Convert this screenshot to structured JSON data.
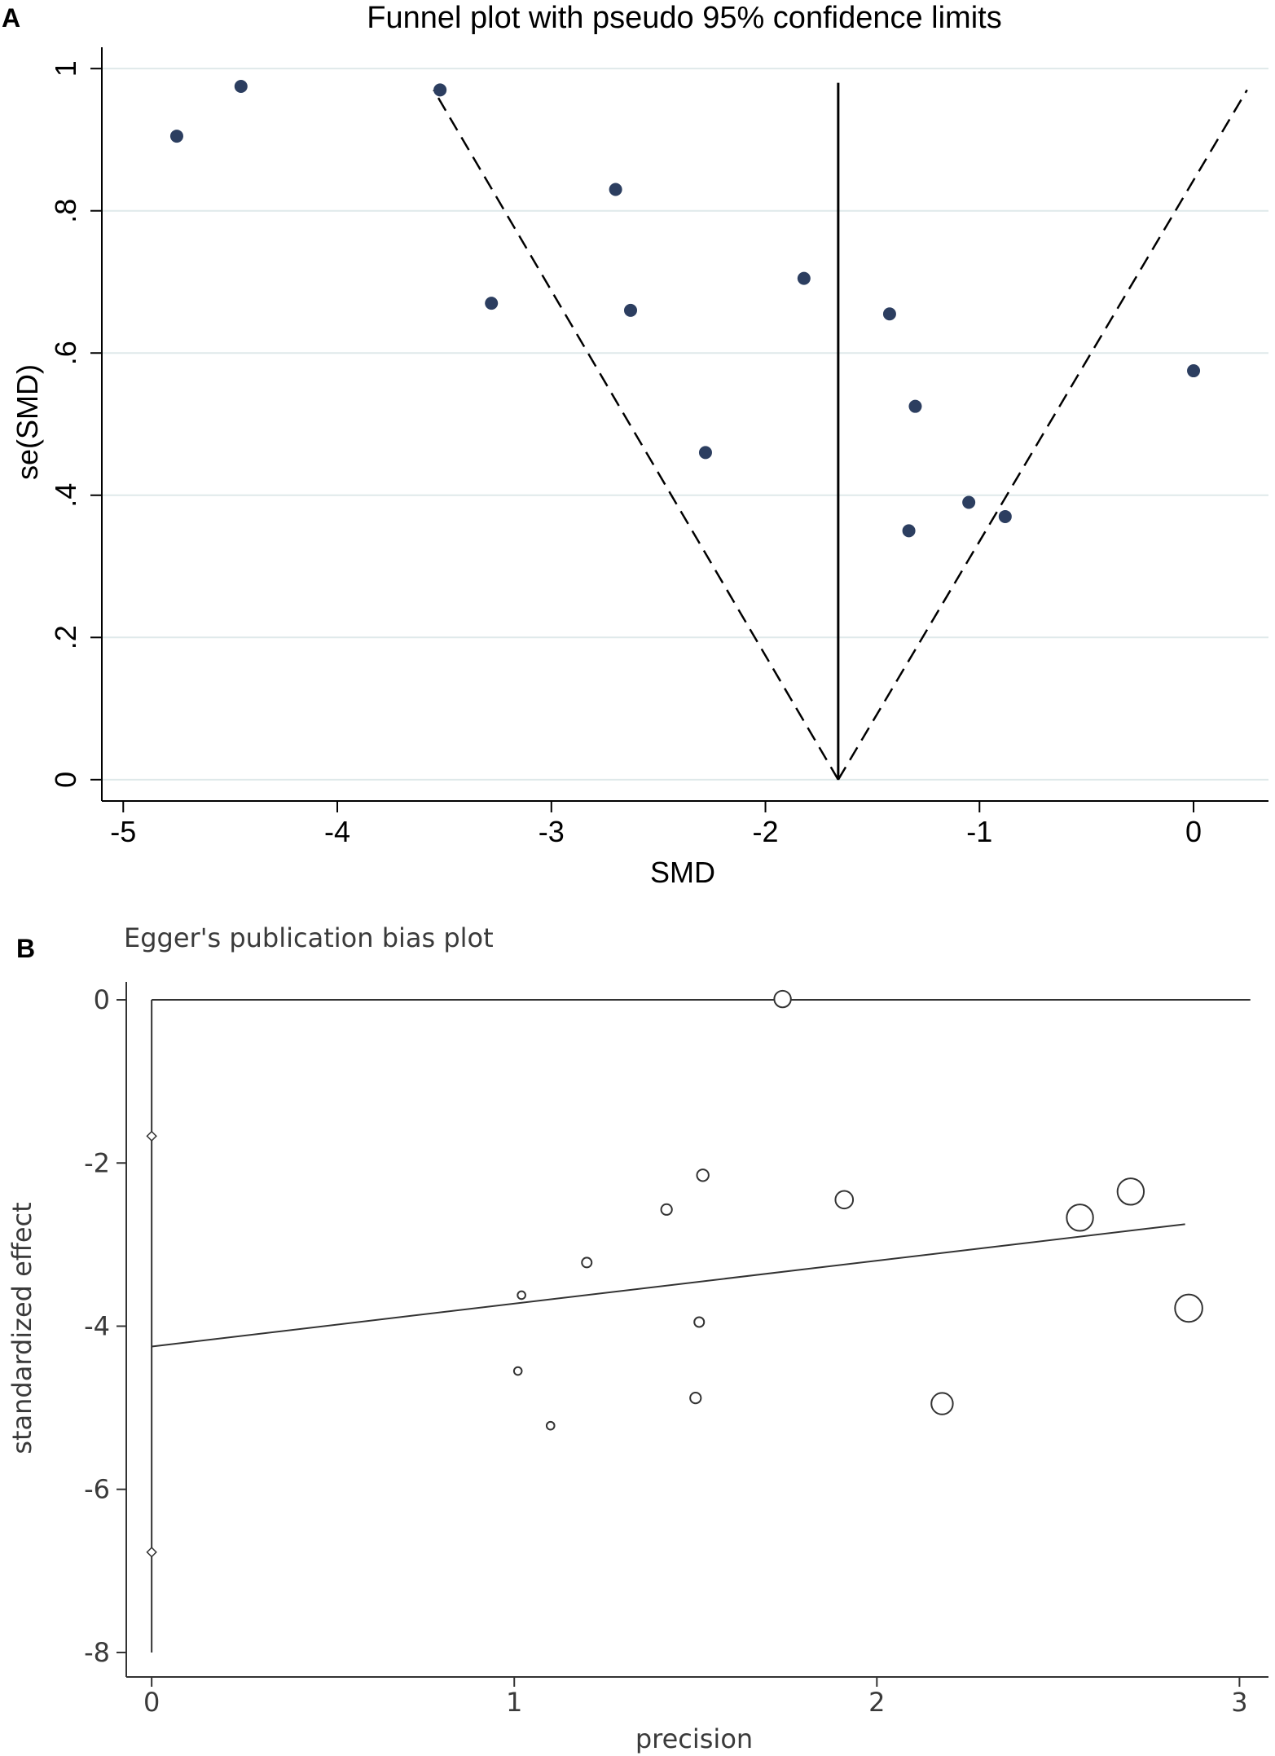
{
  "panels": {
    "a": {
      "label": "A"
    },
    "b": {
      "label": "B"
    }
  },
  "chart_data": [
    {
      "type": "scatter",
      "title": "Funnel plot with pseudo 95% confidence limits",
      "xlabel": "SMD",
      "ylabel": "se(SMD)",
      "xlim": [
        -5.1,
        0.35
      ],
      "ylim": [
        1.03,
        -0.03
      ],
      "y_reversed": true,
      "x_ticks": [
        -5,
        -4,
        -3,
        -2,
        -1,
        0
      ],
      "x_tick_labels": [
        "-5",
        "-4",
        "-3",
        "-2",
        "-1",
        "0"
      ],
      "y_ticks": [
        0,
        0.2,
        0.4,
        0.6,
        0.8,
        1
      ],
      "y_tick_labels": [
        "0",
        ".2",
        ".4",
        ".6",
        ".8",
        "1"
      ],
      "grid": true,
      "grid_color": "#dfe9ea",
      "marker_color": "#2c3e60",
      "pooled_estimate": -1.66,
      "funnel": {
        "apex": [
          -1.66,
          0
        ],
        "lower_left": [
          -3.55,
          0.97
        ],
        "lower_right": [
          0.25,
          0.97
        ]
      },
      "points": [
        {
          "x": -4.75,
          "y": 0.905
        },
        {
          "x": -4.45,
          "y": 0.975
        },
        {
          "x": -3.52,
          "y": 0.97
        },
        {
          "x": -3.28,
          "y": 0.67
        },
        {
          "x": -2.7,
          "y": 0.83
        },
        {
          "x": -2.63,
          "y": 0.66
        },
        {
          "x": -2.28,
          "y": 0.46
        },
        {
          "x": -1.82,
          "y": 0.705
        },
        {
          "x": -1.42,
          "y": 0.655
        },
        {
          "x": -1.33,
          "y": 0.35
        },
        {
          "x": -1.3,
          "y": 0.525
        },
        {
          "x": -1.05,
          "y": 0.39
        },
        {
          "x": -0.88,
          "y": 0.37
        },
        {
          "x": 0.0,
          "y": 0.575
        }
      ]
    },
    {
      "type": "scatter",
      "title": "Egger's publication bias plot",
      "xlabel": "precision",
      "ylabel": "standardized effect",
      "xlim": [
        -0.07,
        3.08
      ],
      "ylim": [
        -8.3,
        0.22
      ],
      "x_ticks": [
        0,
        1,
        2,
        3
      ],
      "x_tick_labels": [
        "0",
        "1",
        "2",
        "3"
      ],
      "y_ticks": [
        0,
        -2,
        -4,
        -6,
        -8
      ],
      "y_tick_labels": [
        "0",
        "-2",
        "-4",
        "-6",
        "-8"
      ],
      "grid": false,
      "reference_line_y": 0,
      "confidence_interval": {
        "x": 0,
        "y_low": -8,
        "y_high": 0,
        "marks": [
          -1.67,
          -6.77
        ]
      },
      "regression_line": {
        "x": [
          0,
          2.85
        ],
        "y": [
          -4.25,
          -2.75
        ]
      },
      "points": [
        {
          "x": 1.74,
          "y": 0.01,
          "w": 1.7
        },
        {
          "x": 1.52,
          "y": -2.15,
          "w": 1.2
        },
        {
          "x": 1.42,
          "y": -2.57,
          "w": 1.1
        },
        {
          "x": 1.91,
          "y": -2.45,
          "w": 1.8
        },
        {
          "x": 1.2,
          "y": -3.22,
          "w": 1.0
        },
        {
          "x": 1.02,
          "y": -3.62,
          "w": 0.8
        },
        {
          "x": 1.51,
          "y": -3.95,
          "w": 1.0
        },
        {
          "x": 1.01,
          "y": -4.55,
          "w": 0.8
        },
        {
          "x": 1.1,
          "y": -5.22,
          "w": 0.8
        },
        {
          "x": 1.5,
          "y": -4.88,
          "w": 1.1
        },
        {
          "x": 2.18,
          "y": -4.95,
          "w": 2.2
        },
        {
          "x": 2.56,
          "y": -2.67,
          "w": 2.7
        },
        {
          "x": 2.7,
          "y": -2.35,
          "w": 2.7
        },
        {
          "x": 2.86,
          "y": -3.78,
          "w": 2.8
        }
      ]
    }
  ]
}
